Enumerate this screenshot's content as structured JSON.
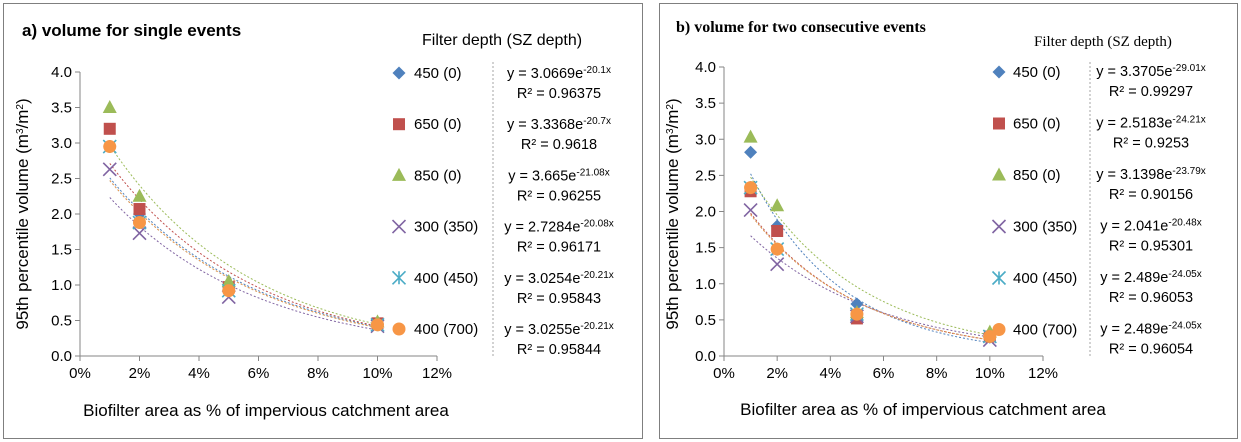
{
  "colors": {
    "450 (0)": "#4f81bd",
    "650 (0)": "#c0504d",
    "850 (0)": "#9bbb59",
    "300 (350)": "#8064a2",
    "400 (450)": "#4bacc6",
    "400 (700)": "#f79646"
  },
  "chart_data": [
    {
      "type": "scatter",
      "title": "a) volume for single events",
      "legend_title": "Filter depth (SZ depth)",
      "xlabel": "Biofilter area as % of impervious catchment area",
      "ylabel": "95th percentile volume (m³/m²)",
      "ylabel_parts": {
        "main": "95th percentile volume (m",
        "sup1": "3",
        "mid": "/m",
        "sup2": "2",
        "end": ")"
      },
      "xlim": [
        0,
        12
      ],
      "ylim": [
        0,
        4
      ],
      "xticks": [
        "0%",
        "2%",
        "4%",
        "6%",
        "8%",
        "10%",
        "12%"
      ],
      "yticks": [
        "0.0",
        "0.5",
        "1.0",
        "1.5",
        "2.0",
        "2.5",
        "3.0",
        "3.5",
        "4.0"
      ],
      "legend_placement": "right",
      "series": [
        {
          "name": "450 (0)",
          "marker": "diamond",
          "x": [
            1,
            2,
            5,
            10
          ],
          "y": [
            2.95,
            2.0,
            0.97,
            0.45
          ],
          "eq_main": "y = 3.0669e",
          "eq_exp": "-20.1x",
          "r2": "R² = 0.96375",
          "fit": [
            3.0669,
            -20.1
          ]
        },
        {
          "name": "650 (0)",
          "marker": "square",
          "x": [
            1,
            2,
            5,
            10
          ],
          "y": [
            3.2,
            2.07,
            0.97,
            0.46
          ],
          "eq_main": "y = 3.3368e",
          "eq_exp": "-20.7x",
          "r2": "R² = 0.9618",
          "fit": [
            3.3368,
            -20.7
          ]
        },
        {
          "name": "850 (0)",
          "marker": "triangle",
          "x": [
            1,
            2,
            5,
            10
          ],
          "y": [
            3.5,
            2.25,
            1.05,
            0.48
          ],
          "eq_main": "y = 3.665e",
          "eq_exp": "-21.08x",
          "r2": "R² = 0.96255",
          "fit": [
            3.665,
            -21.08
          ]
        },
        {
          "name": "300 (350)",
          "marker": "x",
          "x": [
            1,
            2,
            5,
            10
          ],
          "y": [
            2.63,
            1.73,
            0.83,
            0.42
          ],
          "eq_main": "y = 2.7284e",
          "eq_exp": "-20.08x",
          "r2": "R² = 0.96171",
          "fit": [
            2.7284,
            -20.08
          ]
        },
        {
          "name": "400 (450)",
          "marker": "star",
          "x": [
            1,
            2,
            5,
            10
          ],
          "y": [
            2.95,
            1.88,
            0.92,
            0.44
          ],
          "eq_main": "y = 3.0254e",
          "eq_exp": "-20.21x",
          "r2": "R² = 0.95843",
          "fit": [
            3.0254,
            -20.21
          ]
        },
        {
          "name": "400 (700)",
          "marker": "circle",
          "x": [
            1,
            2,
            5,
            10
          ],
          "y": [
            2.95,
            1.88,
            0.92,
            0.44
          ],
          "eq_main": "y = 3.0255e",
          "eq_exp": "-20.21x",
          "r2": "R² = 0.95844",
          "fit": [
            3.0255,
            -20.21
          ]
        }
      ]
    },
    {
      "type": "scatter",
      "title": "b) volume for two consecutive events",
      "legend_title": "Filter depth (SZ depth)",
      "xlabel": "Biofilter area as % of impervious catchment area",
      "ylabel": "95th percentile volume (m³/m²)",
      "ylabel_parts": {
        "main": "95th percentile volume (m",
        "sup1": "3",
        "mid": "/m",
        "sup2": "2",
        "end": ")"
      },
      "xlim": [
        0,
        12
      ],
      "ylim": [
        0,
        4
      ],
      "xticks": [
        "0%",
        "2%",
        "4%",
        "6%",
        "8%",
        "10%",
        "12%"
      ],
      "yticks": [
        "0.0",
        "0.5",
        "1.0",
        "1.5",
        "2.0",
        "2.5",
        "3.0",
        "3.5",
        "4.0"
      ],
      "legend_placement": "right",
      "series": [
        {
          "name": "450 (0)",
          "marker": "diamond",
          "x": [
            1,
            2,
            5,
            10
          ],
          "y": [
            2.82,
            1.8,
            0.72,
            0.26
          ],
          "eq_main": "y = 3.3705e",
          "eq_exp": "-29.01x",
          "r2": "R² = 0.99297",
          "fit": [
            3.3705,
            -29.01
          ]
        },
        {
          "name": "650 (0)",
          "marker": "square",
          "x": [
            1,
            2,
            5,
            10
          ],
          "y": [
            2.28,
            1.73,
            0.52,
            0.27
          ],
          "eq_main": "y = 2.5183e",
          "eq_exp": "-24.21x",
          "r2": "R² = 0.9253",
          "fit": [
            2.5183,
            -24.21
          ]
        },
        {
          "name": "850 (0)",
          "marker": "triangle",
          "x": [
            1,
            2,
            5,
            10
          ],
          "y": [
            3.03,
            2.08,
            0.6,
            0.33
          ],
          "eq_main": "y = 3.1398e",
          "eq_exp": "-23.79x",
          "r2": "R² = 0.90156",
          "fit": [
            3.1398,
            -23.79
          ]
        },
        {
          "name": "300 (350)",
          "marker": "x",
          "x": [
            1,
            2,
            5,
            10
          ],
          "y": [
            2.02,
            1.27,
            0.55,
            0.22
          ],
          "eq_main": "y = 2.041e",
          "eq_exp": "-20.48x",
          "r2": "R² = 0.95301",
          "fit": [
            2.041,
            -20.48
          ]
        },
        {
          "name": "400 (450)",
          "marker": "star",
          "x": [
            1,
            2,
            5,
            10
          ],
          "y": [
            2.33,
            1.48,
            0.58,
            0.27
          ],
          "eq_main": "y = 2.489e",
          "eq_exp": "-24.05x",
          "r2": "R² = 0.96053",
          "fit": [
            2.489,
            -24.05
          ]
        },
        {
          "name": "400 (700)",
          "marker": "circle",
          "x": [
            1,
            2,
            5,
            10
          ],
          "y": [
            2.33,
            1.48,
            0.58,
            0.27
          ],
          "eq_main": "y = 2.489e",
          "eq_exp": "-24.05x",
          "r2": "R² = 0.96054",
          "fit": [
            2.489,
            -24.05
          ]
        }
      ]
    }
  ]
}
